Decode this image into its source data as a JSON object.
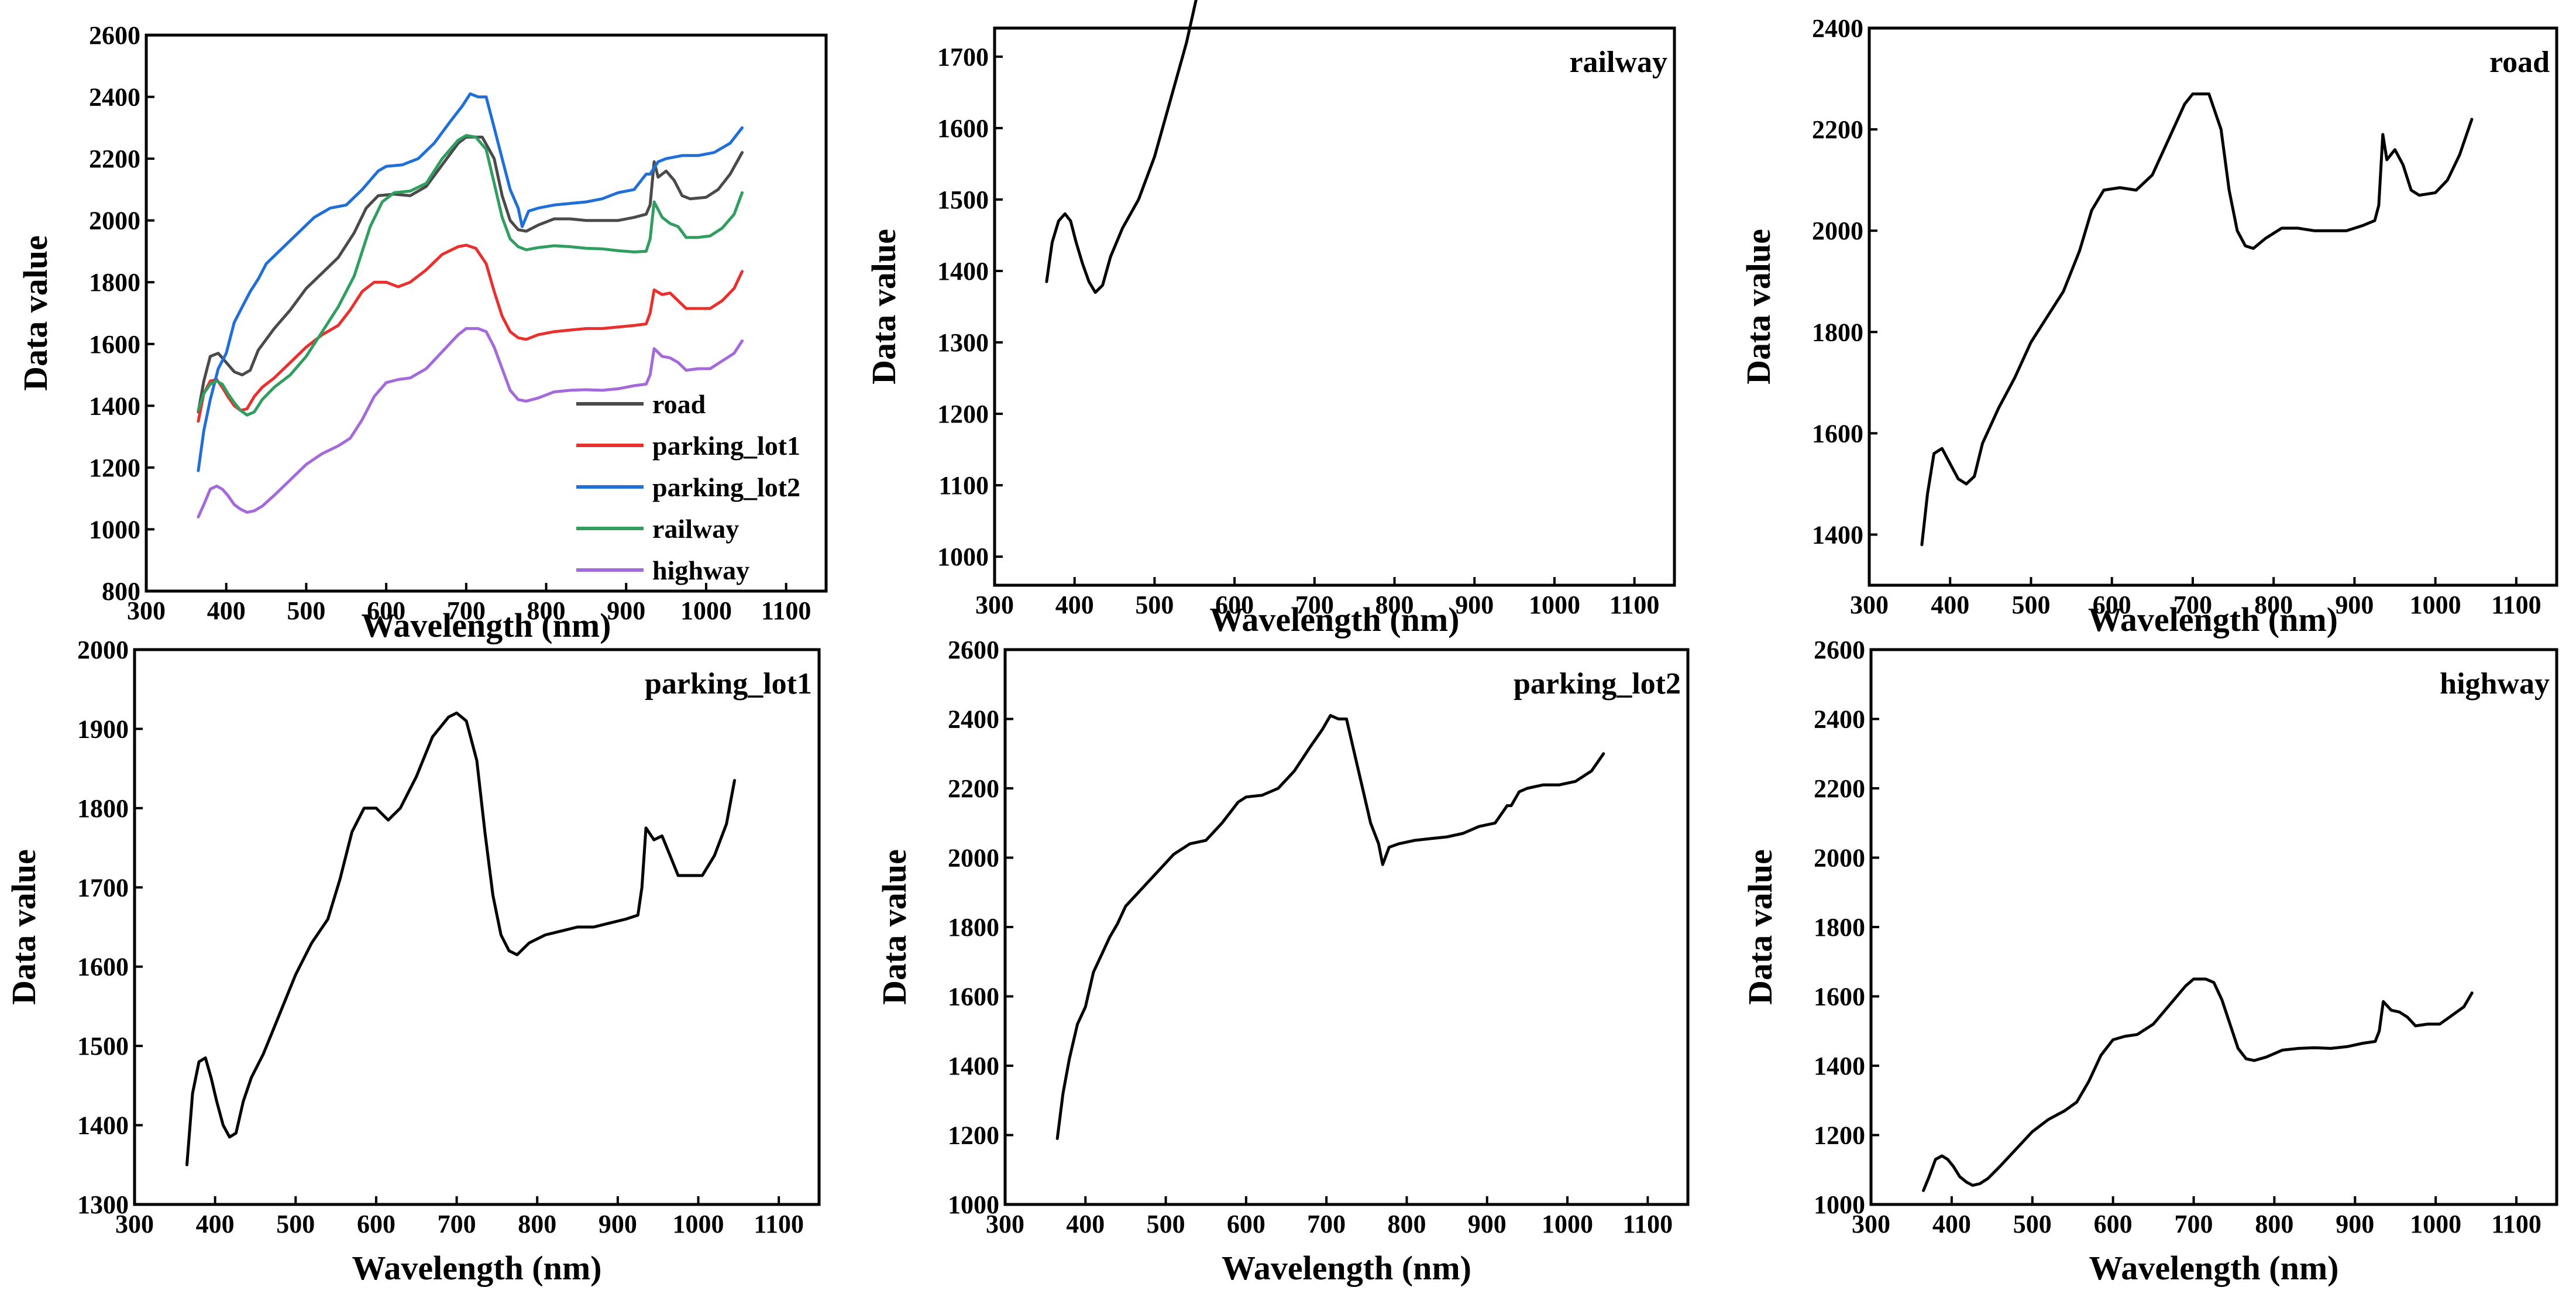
{
  "chart_data": [
    {
      "id": "combined",
      "type": "line",
      "title": "",
      "xlabel": "Wavelength (nm)",
      "ylabel": "Data value",
      "xlim": [
        300,
        1150
      ],
      "ylim": [
        800,
        2600
      ],
      "xticks": [
        300,
        400,
        500,
        600,
        700,
        800,
        900,
        1000,
        1100
      ],
      "yticks": [
        800,
        1000,
        1200,
        1400,
        1600,
        1800,
        2000,
        2200,
        2400,
        2600
      ],
      "legend": "bottom-right",
      "series": [
        {
          "name": "road",
          "color": "#4a4a4a"
        },
        {
          "name": "parking_lot1",
          "color": "#e8312f"
        },
        {
          "name": "parking_lot2",
          "color": "#1f6fd6"
        },
        {
          "name": "railway",
          "color": "#2f9e5e"
        },
        {
          "name": "highway",
          "color": "#a56ad9"
        }
      ]
    },
    {
      "id": "railway",
      "type": "line",
      "title": "railway",
      "xlabel": "Wavelength (nm)",
      "ylabel": "Data value",
      "xlim": [
        300,
        1150
      ],
      "ylim": [
        960,
        1740
      ],
      "xticks": [
        300,
        400,
        500,
        600,
        700,
        800,
        900,
        1000,
        1100
      ],
      "yticks": [
        1000,
        1100,
        1200,
        1300,
        1400,
        1500,
        1600,
        1700
      ]
    },
    {
      "id": "road",
      "type": "line",
      "title": "road",
      "xlabel": "Wavelength (nm)",
      "ylabel": "Data value",
      "xlim": [
        300,
        1150
      ],
      "ylim": [
        1300,
        2400
      ],
      "xticks": [
        300,
        400,
        500,
        600,
        700,
        800,
        900,
        1000,
        1100
      ],
      "yticks": [
        1400,
        1600,
        1800,
        2000,
        2200,
        2400
      ]
    },
    {
      "id": "parking_lot1",
      "type": "line",
      "title": "parking_lot1",
      "xlabel": "Wavelength (nm)",
      "ylabel": "Data value",
      "xlim": [
        300,
        1150
      ],
      "ylim": [
        1300,
        2000
      ],
      "xticks": [
        300,
        400,
        500,
        600,
        700,
        800,
        900,
        1000,
        1100
      ],
      "yticks": [
        1300,
        1400,
        1500,
        1600,
        1700,
        1800,
        1900,
        2000
      ]
    },
    {
      "id": "parking_lot2",
      "type": "line",
      "title": "parking_lot2",
      "xlabel": "Wavelength (nm)",
      "ylabel": "Data value",
      "xlim": [
        300,
        1150
      ],
      "ylim": [
        1000,
        2600
      ],
      "xticks": [
        300,
        400,
        500,
        600,
        700,
        800,
        900,
        1000,
        1100
      ],
      "yticks": [
        1000,
        1200,
        1400,
        1600,
        1800,
        2000,
        2200,
        2400,
        2600
      ]
    },
    {
      "id": "highway",
      "type": "line",
      "title": "highway",
      "xlabel": "Wavelength (nm)",
      "ylabel": "Data value",
      "xlim": [
        300,
        1150
      ],
      "ylim": [
        1000,
        2600
      ],
      "xticks": [
        300,
        400,
        500,
        600,
        700,
        800,
        900,
        1000,
        1100
      ],
      "yticks": [
        1000,
        1200,
        1400,
        1600,
        1800,
        2000,
        2200,
        2400,
        2600
      ]
    }
  ],
  "spectra": {
    "road": [
      [
        365,
        1380
      ],
      [
        372,
        1480
      ],
      [
        380,
        1560
      ],
      [
        390,
        1570
      ],
      [
        400,
        1540
      ],
      [
        410,
        1510
      ],
      [
        420,
        1500
      ],
      [
        430,
        1515
      ],
      [
        440,
        1580
      ],
      [
        460,
        1650
      ],
      [
        480,
        1710
      ],
      [
        500,
        1780
      ],
      [
        520,
        1830
      ],
      [
        540,
        1880
      ],
      [
        560,
        1960
      ],
      [
        575,
        2040
      ],
      [
        590,
        2080
      ],
      [
        610,
        2085
      ],
      [
        630,
        2080
      ],
      [
        650,
        2110
      ],
      [
        670,
        2180
      ],
      [
        690,
        2250
      ],
      [
        700,
        2270
      ],
      [
        720,
        2270
      ],
      [
        735,
        2200
      ],
      [
        745,
        2080
      ],
      [
        755,
        2000
      ],
      [
        765,
        1970
      ],
      [
        775,
        1965
      ],
      [
        790,
        1985
      ],
      [
        810,
        2005
      ],
      [
        830,
        2005
      ],
      [
        850,
        2000
      ],
      [
        870,
        2000
      ],
      [
        890,
        2000
      ],
      [
        910,
        2010
      ],
      [
        925,
        2020
      ],
      [
        930,
        2050
      ],
      [
        935,
        2190
      ],
      [
        940,
        2140
      ],
      [
        950,
        2160
      ],
      [
        960,
        2130
      ],
      [
        970,
        2080
      ],
      [
        980,
        2070
      ],
      [
        1000,
        2075
      ],
      [
        1015,
        2100
      ],
      [
        1030,
        2150
      ],
      [
        1045,
        2220
      ]
    ],
    "parking_lot1": [
      [
        365,
        1350
      ],
      [
        372,
        1440
      ],
      [
        380,
        1480
      ],
      [
        388,
        1485
      ],
      [
        395,
        1460
      ],
      [
        402,
        1430
      ],
      [
        410,
        1400
      ],
      [
        418,
        1385
      ],
      [
        426,
        1390
      ],
      [
        435,
        1430
      ],
      [
        445,
        1460
      ],
      [
        460,
        1490
      ],
      [
        480,
        1540
      ],
      [
        500,
        1590
      ],
      [
        520,
        1630
      ],
      [
        540,
        1660
      ],
      [
        555,
        1710
      ],
      [
        570,
        1770
      ],
      [
        585,
        1800
      ],
      [
        600,
        1800
      ],
      [
        615,
        1785
      ],
      [
        630,
        1800
      ],
      [
        650,
        1840
      ],
      [
        670,
        1890
      ],
      [
        690,
        1915
      ],
      [
        700,
        1920
      ],
      [
        712,
        1910
      ],
      [
        725,
        1860
      ],
      [
        735,
        1770
      ],
      [
        745,
        1690
      ],
      [
        755,
        1640
      ],
      [
        765,
        1620
      ],
      [
        775,
        1615
      ],
      [
        790,
        1630
      ],
      [
        810,
        1640
      ],
      [
        830,
        1645
      ],
      [
        850,
        1650
      ],
      [
        870,
        1650
      ],
      [
        890,
        1655
      ],
      [
        910,
        1660
      ],
      [
        925,
        1665
      ],
      [
        930,
        1700
      ],
      [
        935,
        1775
      ],
      [
        945,
        1760
      ],
      [
        955,
        1765
      ],
      [
        965,
        1740
      ],
      [
        975,
        1715
      ],
      [
        990,
        1715
      ],
      [
        1005,
        1715
      ],
      [
        1020,
        1740
      ],
      [
        1035,
        1780
      ],
      [
        1045,
        1835
      ]
    ],
    "parking_lot2": [
      [
        365,
        1190
      ],
      [
        372,
        1320
      ],
      [
        380,
        1420
      ],
      [
        390,
        1520
      ],
      [
        400,
        1570
      ],
      [
        410,
        1670
      ],
      [
        420,
        1720
      ],
      [
        430,
        1770
      ],
      [
        440,
        1810
      ],
      [
        450,
        1860
      ],
      [
        470,
        1910
      ],
      [
        490,
        1960
      ],
      [
        510,
        2010
      ],
      [
        530,
        2040
      ],
      [
        550,
        2050
      ],
      [
        570,
        2100
      ],
      [
        590,
        2160
      ],
      [
        600,
        2175
      ],
      [
        620,
        2180
      ],
      [
        640,
        2200
      ],
      [
        660,
        2250
      ],
      [
        680,
        2320
      ],
      [
        695,
        2370
      ],
      [
        705,
        2410
      ],
      [
        715,
        2400
      ],
      [
        725,
        2400
      ],
      [
        735,
        2300
      ],
      [
        745,
        2200
      ],
      [
        755,
        2100
      ],
      [
        765,
        2040
      ],
      [
        770,
        1980
      ],
      [
        778,
        2030
      ],
      [
        790,
        2040
      ],
      [
        810,
        2050
      ],
      [
        830,
        2055
      ],
      [
        850,
        2060
      ],
      [
        870,
        2070
      ],
      [
        890,
        2090
      ],
      [
        910,
        2100
      ],
      [
        925,
        2150
      ],
      [
        930,
        2150
      ],
      [
        940,
        2190
      ],
      [
        950,
        2200
      ],
      [
        970,
        2210
      ],
      [
        990,
        2210
      ],
      [
        1010,
        2220
      ],
      [
        1030,
        2250
      ],
      [
        1045,
        2300
      ]
    ],
    "railway": [
      [
        365,
        1385
      ],
      [
        372,
        1440
      ],
      [
        380,
        1470
      ],
      [
        388,
        1480
      ],
      [
        395,
        1470
      ],
      [
        402,
        1440
      ],
      [
        410,
        1410
      ],
      [
        418,
        1385
      ],
      [
        426,
        1370
      ],
      [
        435,
        1380
      ],
      [
        445,
        1420
      ],
      [
        460,
        1460
      ],
      [
        480,
        1500
      ],
      [
        500,
        1560
      ],
      [
        520,
        1640
      ],
      [
        540,
        1720
      ],
      [
        560,
        1820
      ],
      [
        580,
        1980
      ],
      [
        595,
        2060
      ],
      [
        610,
        2090
      ],
      [
        630,
        2095
      ],
      [
        650,
        2120
      ],
      [
        670,
        2200
      ],
      [
        690,
        2260
      ],
      [
        700,
        2275
      ],
      [
        712,
        2270
      ],
      [
        725,
        2230
      ],
      [
        735,
        2120
      ],
      [
        745,
        2010
      ],
      [
        755,
        1940
      ],
      [
        765,
        1915
      ],
      [
        775,
        1905
      ],
      [
        790,
        1912
      ],
      [
        810,
        1918
      ],
      [
        830,
        1915
      ],
      [
        850,
        1910
      ],
      [
        870,
        1908
      ],
      [
        890,
        1902
      ],
      [
        910,
        1898
      ],
      [
        925,
        1900
      ],
      [
        930,
        1940
      ],
      [
        935,
        2060
      ],
      [
        945,
        2010
      ],
      [
        955,
        1990
      ],
      [
        965,
        1980
      ],
      [
        975,
        1945
      ],
      [
        990,
        1945
      ],
      [
        1005,
        1950
      ],
      [
        1020,
        1975
      ],
      [
        1035,
        2020
      ],
      [
        1045,
        2090
      ]
    ],
    "highway": [
      [
        365,
        1040
      ],
      [
        372,
        1080
      ],
      [
        380,
        1130
      ],
      [
        388,
        1140
      ],
      [
        395,
        1130
      ],
      [
        402,
        1110
      ],
      [
        410,
        1080
      ],
      [
        418,
        1065
      ],
      [
        426,
        1055
      ],
      [
        435,
        1060
      ],
      [
        445,
        1075
      ],
      [
        460,
        1110
      ],
      [
        480,
        1160
      ],
      [
        500,
        1210
      ],
      [
        520,
        1245
      ],
      [
        540,
        1270
      ],
      [
        555,
        1295
      ],
      [
        570,
        1355
      ],
      [
        585,
        1430
      ],
      [
        600,
        1475
      ],
      [
        615,
        1485
      ],
      [
        630,
        1490
      ],
      [
        650,
        1520
      ],
      [
        670,
        1575
      ],
      [
        690,
        1630
      ],
      [
        700,
        1650
      ],
      [
        715,
        1650
      ],
      [
        725,
        1640
      ],
      [
        735,
        1590
      ],
      [
        745,
        1520
      ],
      [
        755,
        1450
      ],
      [
        765,
        1420
      ],
      [
        775,
        1415
      ],
      [
        790,
        1425
      ],
      [
        810,
        1445
      ],
      [
        830,
        1450
      ],
      [
        850,
        1452
      ],
      [
        870,
        1450
      ],
      [
        890,
        1455
      ],
      [
        910,
        1465
      ],
      [
        925,
        1470
      ],
      [
        930,
        1500
      ],
      [
        935,
        1585
      ],
      [
        945,
        1560
      ],
      [
        955,
        1555
      ],
      [
        965,
        1540
      ],
      [
        975,
        1515
      ],
      [
        990,
        1520
      ],
      [
        1005,
        1520
      ],
      [
        1020,
        1545
      ],
      [
        1035,
        1570
      ],
      [
        1045,
        1610
      ]
    ]
  }
}
